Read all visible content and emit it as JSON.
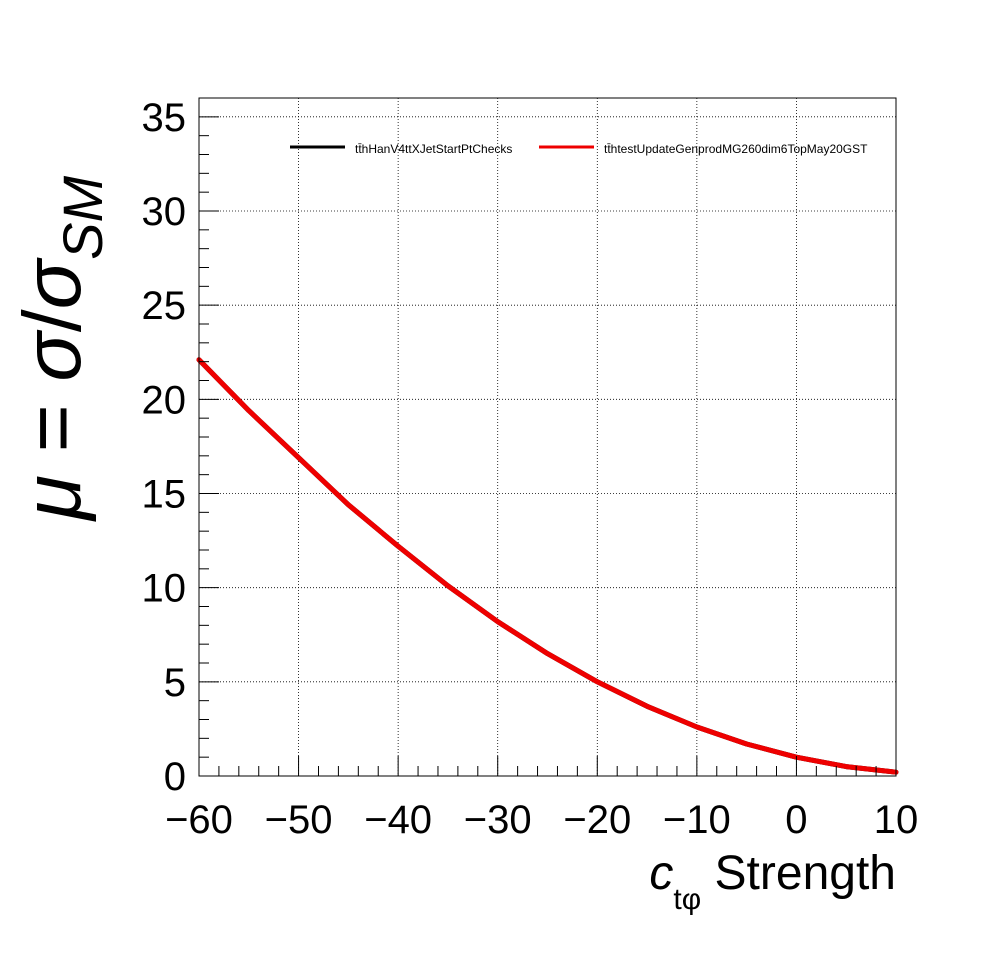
{
  "chart_data": {
    "type": "line",
    "xlabel": {
      "main": "c",
      "sub": "tφ",
      "rest": " Strength"
    },
    "ylabel": {
      "mu": "μ",
      "eq": " = ",
      "sigma": "σ",
      "slash": "/",
      "sigma2": "σ",
      "sub": "SM"
    },
    "xlim": [
      -60,
      10
    ],
    "ylim": [
      0,
      36
    ],
    "x_ticks": [
      -60,
      -50,
      -40,
      -30,
      -20,
      -10,
      0,
      10
    ],
    "x_tick_labels": [
      "−60",
      "−50",
      "−40",
      "−30",
      "−20",
      "−10",
      "0",
      "10"
    ],
    "y_ticks": [
      0,
      5,
      10,
      15,
      20,
      25,
      30,
      35
    ],
    "y_tick_labels": [
      "0",
      "5",
      "10",
      "15",
      "20",
      "25",
      "30",
      "35"
    ],
    "grid": true,
    "legend_position": "top-right",
    "x": [
      -60,
      -55,
      -50,
      -45,
      -40,
      -35,
      -30,
      -25,
      -20,
      -15,
      -10,
      -5,
      0,
      5,
      10
    ],
    "series": [
      {
        "name": "tt̄hHanV4ttXJetStartPtChecks",
        "color": "#000000",
        "values": [
          22.1,
          19.4,
          16.9,
          14.4,
          12.2,
          10.1,
          8.2,
          6.5,
          5.0,
          3.7,
          2.6,
          1.7,
          1.0,
          0.5,
          0.2
        ]
      },
      {
        "name": "tt̄htestUpdateGenprodMG260dim6TopMay20GST",
        "color": "#ee0000",
        "values": [
          22.1,
          19.4,
          16.9,
          14.4,
          12.2,
          10.1,
          8.2,
          6.5,
          5.0,
          3.7,
          2.6,
          1.7,
          1.0,
          0.5,
          0.2
        ]
      }
    ]
  }
}
